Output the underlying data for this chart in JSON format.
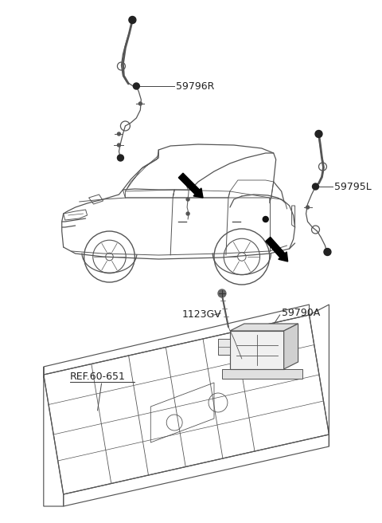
{
  "bg_color": "#ffffff",
  "line_color": "#444444",
  "label_color": "#222222",
  "text_fontsize": 9,
  "label_59796R": "59796R",
  "label_59795L": "59795L",
  "label_1123GV": "1123GV",
  "label_59790A": "59790A",
  "label_ref": "REF.60-651"
}
